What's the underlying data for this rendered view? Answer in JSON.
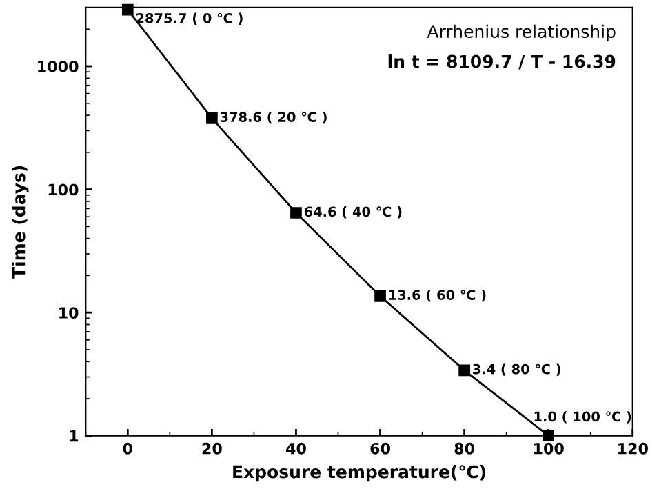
{
  "chart_data": {
    "type": "line",
    "xlabel": "Exposure temperature(℃)",
    "ylabel": "Time (days)",
    "annotations": [
      "Arrhenius relationship",
      "ln t = 8109.7 / T - 16.39"
    ],
    "x": [
      0,
      20,
      40,
      60,
      80,
      100
    ],
    "series": [
      {
        "color": "#000000",
        "values": [
          2875.7,
          378.6,
          64.6,
          13.6,
          3.4,
          1.0
        ],
        "value_labels": [
          "2875.7 ( 0 ℃ )",
          "378.6 ( 20 ℃ )",
          "64.6 ( 40 ℃ )",
          "13.6 ( 60 ℃ )",
          "3.4 ( 80 ℃ )",
          "1.0 ( 100 ℃ )"
        ]
      }
    ],
    "xlim": [
      -10,
      120
    ],
    "xticks": [
      0,
      20,
      40,
      60,
      80,
      100,
      120
    ],
    "ylim": [
      1,
      3000
    ],
    "yticks": [
      1,
      10,
      100,
      1000
    ],
    "log": "y",
    "marker": "square",
    "line_style": "solid",
    "grid": false,
    "legend": false
  }
}
